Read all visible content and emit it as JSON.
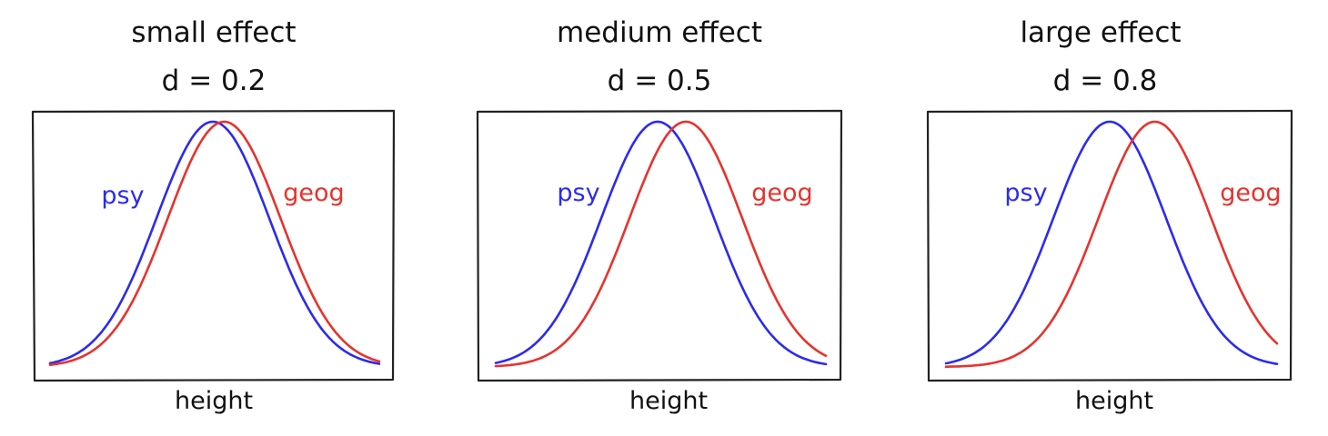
{
  "chart_data": [
    {
      "type": "line",
      "title": "small effect",
      "subtitle": "d = 0.2",
      "xlabel": "height",
      "ylabel": "",
      "effect_size": 0.2,
      "grid": false,
      "series": [
        {
          "name": "psy",
          "color": "#2b2bf0",
          "mean": 0,
          "sd": 1
        },
        {
          "name": "geog",
          "color": "#e8322c",
          "mean": 0.2,
          "sd": 1
        }
      ]
    },
    {
      "type": "line",
      "title": "medium effect",
      "subtitle": "d = 0.5",
      "xlabel": "height",
      "ylabel": "",
      "effect_size": 0.5,
      "grid": false,
      "series": [
        {
          "name": "psy",
          "color": "#2b2bf0",
          "mean": 0,
          "sd": 1
        },
        {
          "name": "geog",
          "color": "#e8322c",
          "mean": 0.5,
          "sd": 1
        }
      ]
    },
    {
      "type": "line",
      "title": "large effect",
      "subtitle": "d = 0.8",
      "xlabel": "height",
      "ylabel": "",
      "effect_size": 0.8,
      "grid": false,
      "series": [
        {
          "name": "psy",
          "color": "#2b2bf0",
          "mean": 0,
          "sd": 1
        },
        {
          "name": "geog",
          "color": "#e8322c",
          "mean": 0.8,
          "sd": 1
        }
      ]
    }
  ]
}
